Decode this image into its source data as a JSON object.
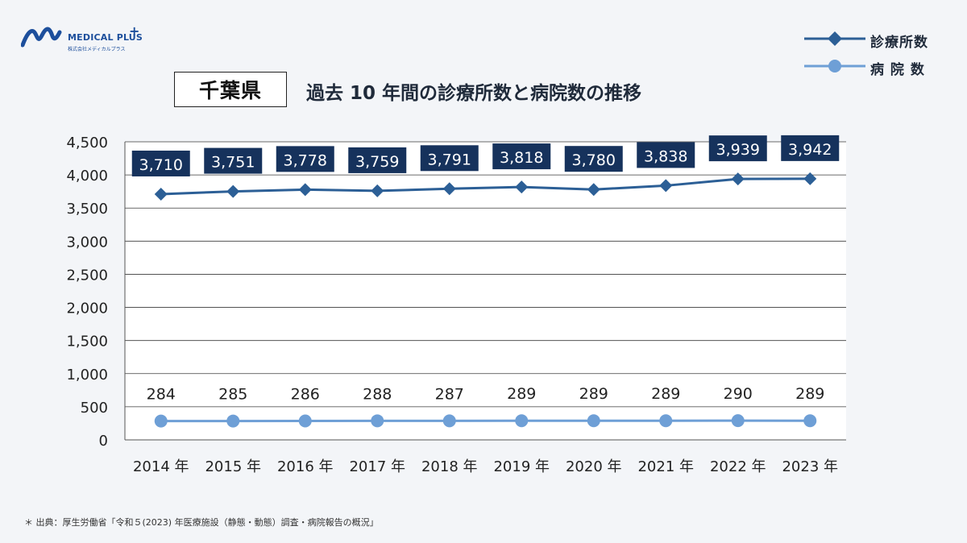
{
  "brand": {
    "name": "MEDICAL PLUS",
    "plus_mark": "+",
    "sub": "株式会社メディカルプラス",
    "color": "#1d4f9c"
  },
  "header": {
    "region": "千葉県",
    "title": "過去 10 年間の診療所数と病院数の推移"
  },
  "legend": [
    {
      "label": "診療所数",
      "marker": "diamond",
      "color": "#2c5f96"
    },
    {
      "label": "病 院 数",
      "marker": "circle",
      "color": "#6e9fd6"
    }
  ],
  "chart_data": {
    "type": "line",
    "x": [
      "2014 年",
      "2015 年",
      "2016 年",
      "2017 年",
      "2018 年",
      "2019 年",
      "2020 年",
      "2021 年",
      "2022 年",
      "2023 年"
    ],
    "series": [
      {
        "name": "診療所数",
        "values": [
          3710,
          3751,
          3778,
          3759,
          3791,
          3818,
          3780,
          3838,
          3939,
          3942
        ],
        "labels": [
          "3,710",
          "3,751",
          "3,778",
          "3,759",
          "3,791",
          "3,818",
          "3,780",
          "3,838",
          "3,939",
          "3,942"
        ],
        "color": "#2c5f96",
        "label_bg": "#16325c",
        "marker": "diamond"
      },
      {
        "name": "病 院 数",
        "values": [
          284,
          285,
          286,
          288,
          287,
          289,
          289,
          289,
          290,
          289
        ],
        "labels": [
          "284",
          "285",
          "286",
          "288",
          "287",
          "289",
          "289",
          "289",
          "290",
          "289"
        ],
        "color": "#6e9fd6",
        "marker": "circle"
      }
    ],
    "y_ticks": [
      "0",
      "500",
      "1,000",
      "1,500",
      "2,000",
      "2,500",
      "3,000",
      "3,500",
      "4,000",
      "4,500"
    ],
    "ylim": [
      0,
      4500
    ],
    "grid": true,
    "legend_position": "top-right"
  },
  "source": "＊ 出典：厚生労働省「令和５(2023) 年医療施設（静態・動態）調査・病院報告の概況」"
}
